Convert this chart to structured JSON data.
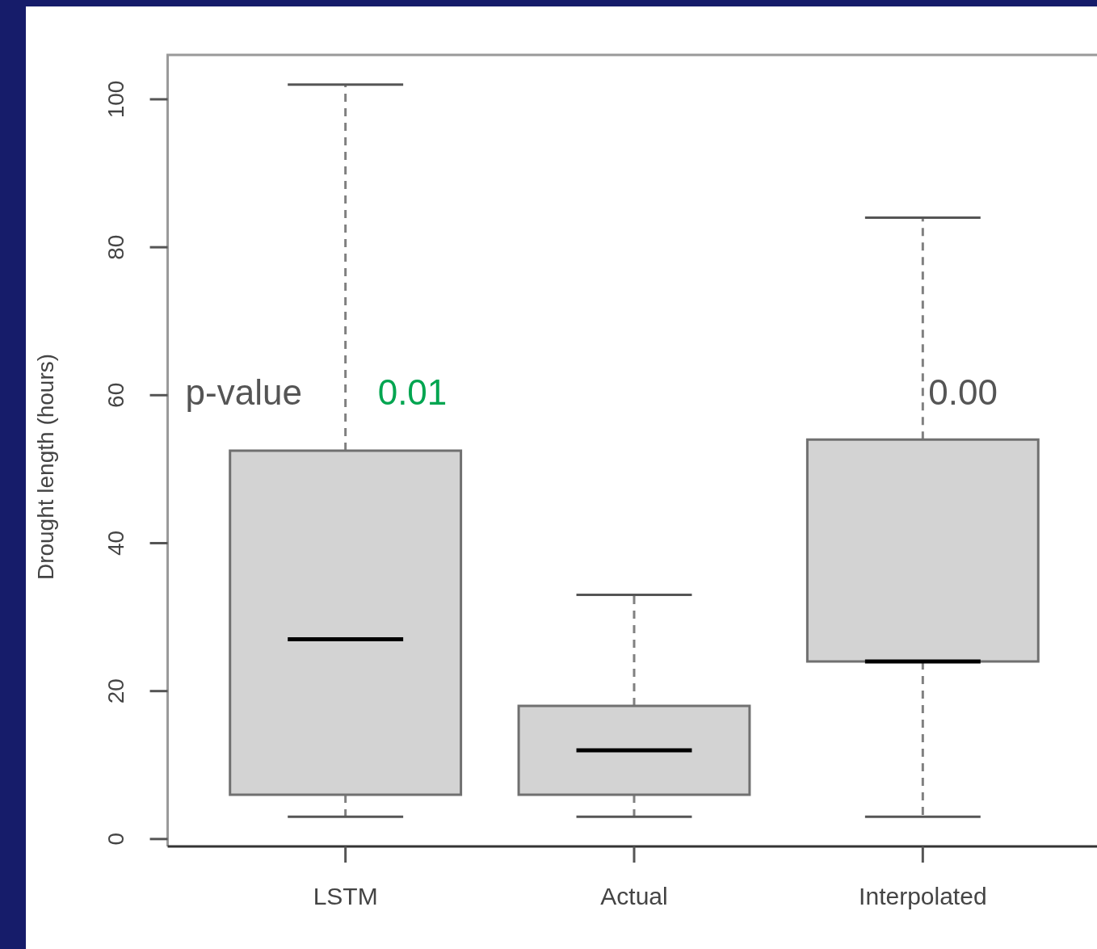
{
  "chart_data": {
    "type": "box",
    "ylabel": "Drought length (hours)",
    "categories": [
      "LSTM",
      "Actual",
      "Interpolated"
    ],
    "color": "#d3d3d3",
    "boxes": [
      {
        "low": 3,
        "q1": 6,
        "median": 27,
        "q3": 52.5,
        "high": 102
      },
      {
        "low": 3,
        "q1": 6,
        "median": 12,
        "q3": 18,
        "high": 33
      },
      {
        "low": 3,
        "q1": 24,
        "median": 24,
        "q3": 54,
        "high": 84
      }
    ],
    "ylim": [
      -1,
      106
    ],
    "yticks": [
      0,
      20,
      40,
      60,
      80,
      100
    ],
    "annotations": [
      "p-value",
      {
        "text": "0.01",
        "x": "LSTM",
        "y": 60
      },
      {
        "text": "0.00",
        "x": "Interpolated",
        "y": 60
      }
    ]
  }
}
